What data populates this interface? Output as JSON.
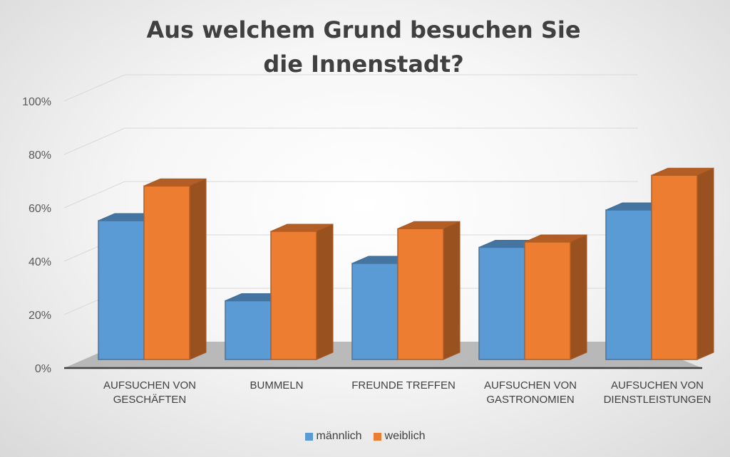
{
  "chart_data": {
    "type": "bar",
    "title": "Aus welchem Grund besuchen Sie die Innenstadt?",
    "xlabel": "",
    "ylabel": "",
    "ylim": [
      0,
      100
    ],
    "yticks": [
      "0%",
      "20%",
      "40%",
      "60%",
      "80%",
      "100%"
    ],
    "categories": [
      [
        "AUFSUCHEN VON",
        "GESCHÄFTEN"
      ],
      [
        "BUMMELN"
      ],
      [
        "FREUNDE TREFFEN"
      ],
      [
        "AUFSUCHEN VON",
        "GASTRONOMIEN"
      ],
      [
        "AUFSUCHEN VON",
        "DIENSTLEISTUNGEN"
      ]
    ],
    "series": [
      {
        "name": "männlich",
        "color": "#5b9bd5",
        "values": [
          52,
          22,
          36,
          42,
          56
        ]
      },
      {
        "name": "weiblich",
        "color": "#ed7d31",
        "values": [
          65,
          48,
          49,
          44,
          69
        ]
      }
    ],
    "grid": true,
    "legend_position": "bottom",
    "style": "3d-clustered-column"
  }
}
